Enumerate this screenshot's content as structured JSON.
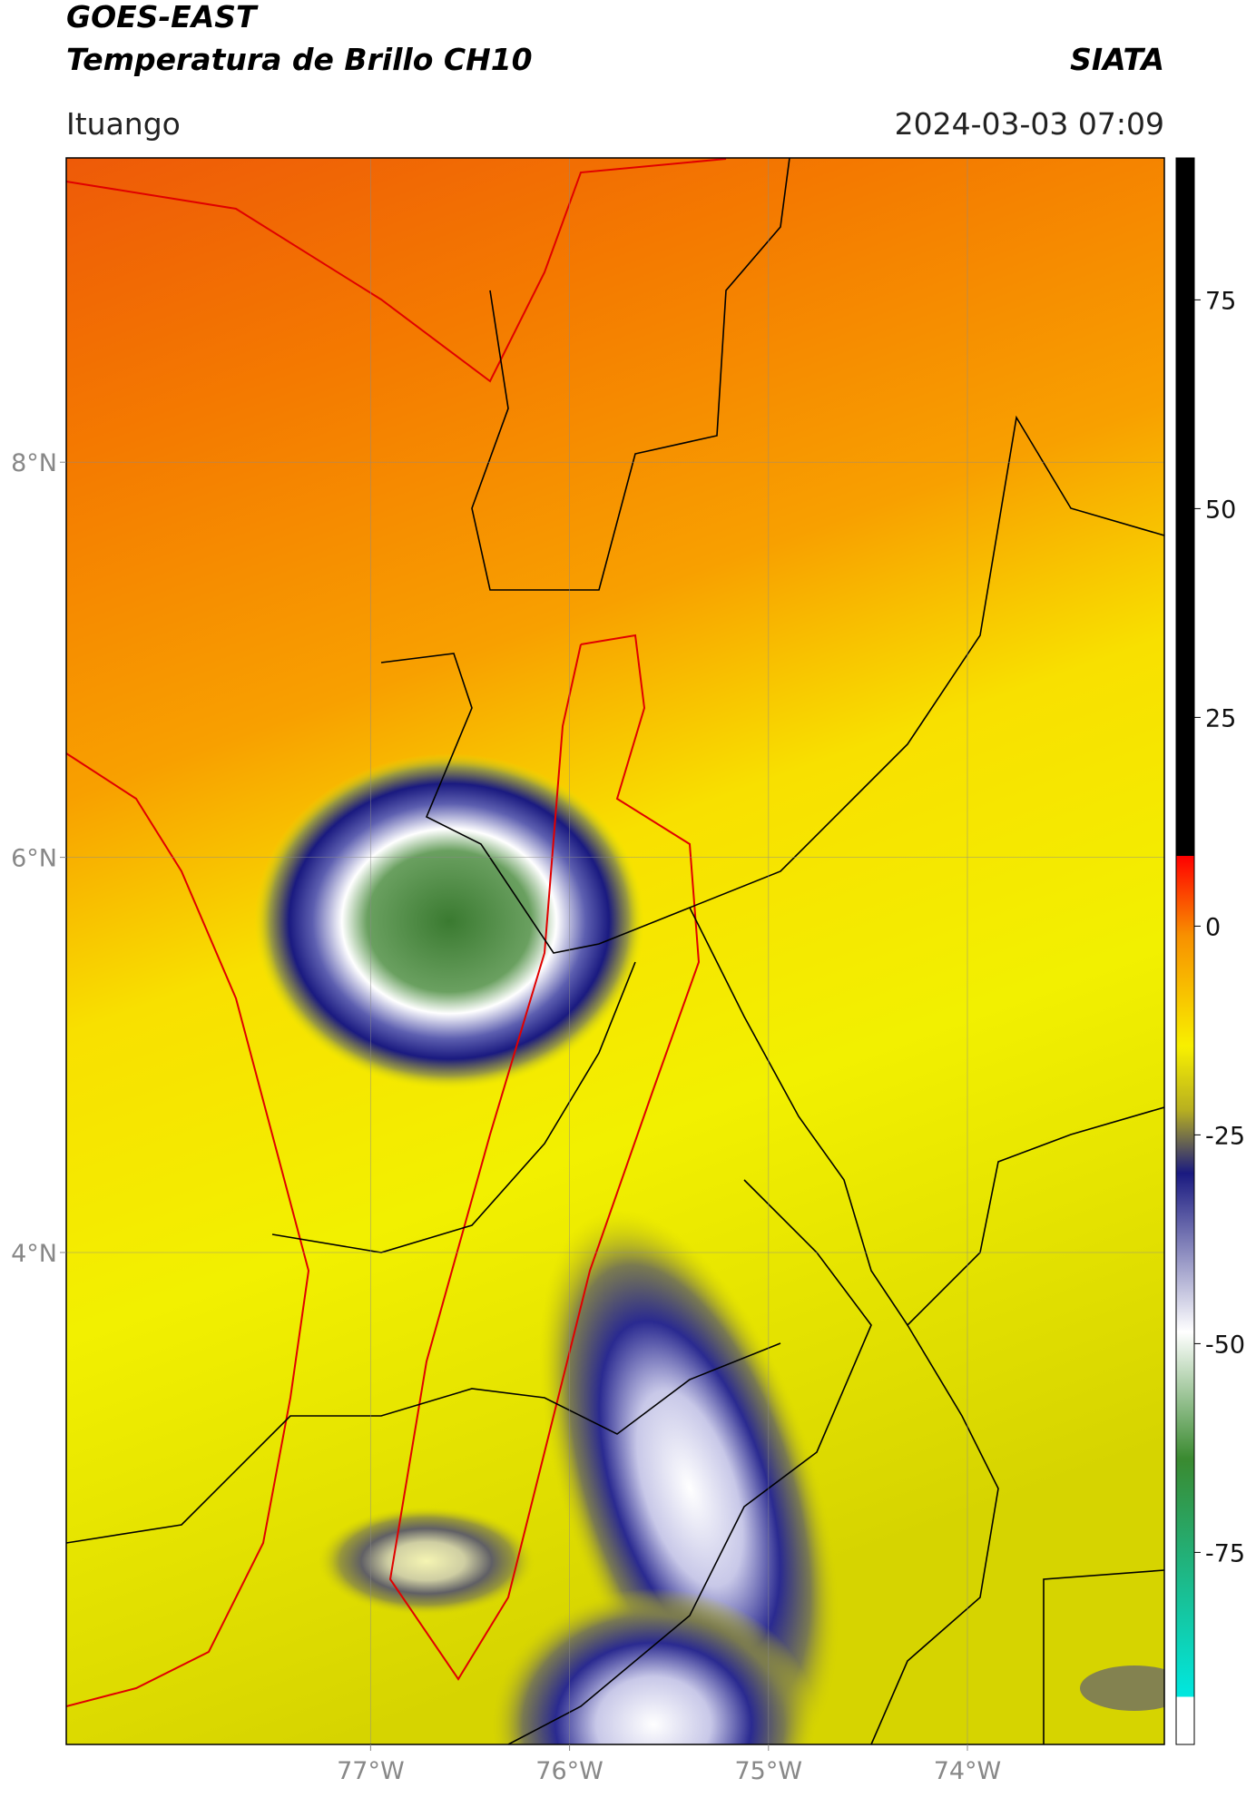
{
  "title": "GOES-EAST",
  "subtitle": "Temperatura de Brillo CH10",
  "source": "SIATA",
  "location": "Ituango",
  "timestamp": "2024-03-03 07:09",
  "map": {
    "xlim": [
      -78.53,
      -73.01
    ],
    "ylim": [
      1.51,
      9.54
    ],
    "xticks": [
      {
        "value": -77,
        "label": "77°W"
      },
      {
        "value": -76,
        "label": "76°W"
      },
      {
        "value": -75,
        "label": "75°W"
      },
      {
        "value": -74,
        "label": "74°W"
      }
    ],
    "yticks": [
      {
        "value": 8,
        "label": "8°N"
      },
      {
        "value": 6,
        "label": "6°N"
      },
      {
        "value": 4,
        "label": "4°N"
      }
    ],
    "grid": true
  },
  "colorbar": {
    "lim": [
      -98,
      92
    ],
    "ticks": [
      75,
      50,
      25,
      0,
      -25,
      -50,
      -75
    ]
  }
}
